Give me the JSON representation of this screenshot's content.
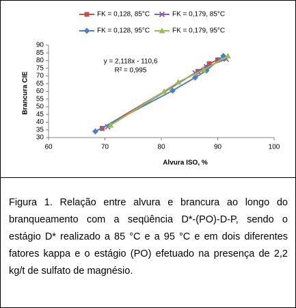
{
  "chart_data": {
    "type": "line",
    "x_label": "Alvura ISO, %",
    "y_label": "Brancura CIE",
    "annotations": [
      "y = 2,118x - 110,6",
      "R² = 0,995"
    ],
    "xlim": [
      60,
      100
    ],
    "xticks": [
      60,
      70,
      80,
      90,
      100
    ],
    "ylim": [
      30,
      90
    ],
    "yticks": [
      30,
      35,
      40,
      45,
      50,
      55,
      60,
      65,
      70,
      75,
      80,
      85,
      90
    ],
    "grid": false,
    "series": [
      {
        "name": "FK = 0,128, 85°C",
        "color": "#c0504d",
        "marker": "square",
        "x": [
          69.5,
          86.5,
          88.5,
          90
        ],
        "values": [
          36,
          73,
          78,
          80.5
        ]
      },
      {
        "name": "FK = 0,179, 85°C",
        "color": "#8064a2",
        "marker": "x",
        "x": [
          70.5,
          86,
          88,
          91.5
        ],
        "values": [
          37,
          72,
          76,
          81
        ]
      },
      {
        "name": "FK = 0,128, 95°C",
        "color": "#4f81bd",
        "marker": "diamond",
        "x": [
          68.3,
          82,
          86,
          88,
          91
        ],
        "values": [
          34,
          60.5,
          69,
          73.5,
          83
        ]
      },
      {
        "name": "FK = 0,179, 95°C",
        "color": "#9bbb59",
        "marker": "triangle",
        "x": [
          71,
          80.5,
          83,
          87.5,
          91.8
        ],
        "values": [
          38,
          60,
          66,
          74,
          83
        ]
      }
    ]
  },
  "caption": "Figura 1. Relação entre alvura e brancura ao longo do branqueamento com a seqüência D*-(PO)-D-P, sendo o estágio D* realizado a 85 °C e a 95 °C e em dois diferentes fatores kappa e o estágio (PO) efetuado na presença de 2,2 kg/t de sulfato de magnésio."
}
